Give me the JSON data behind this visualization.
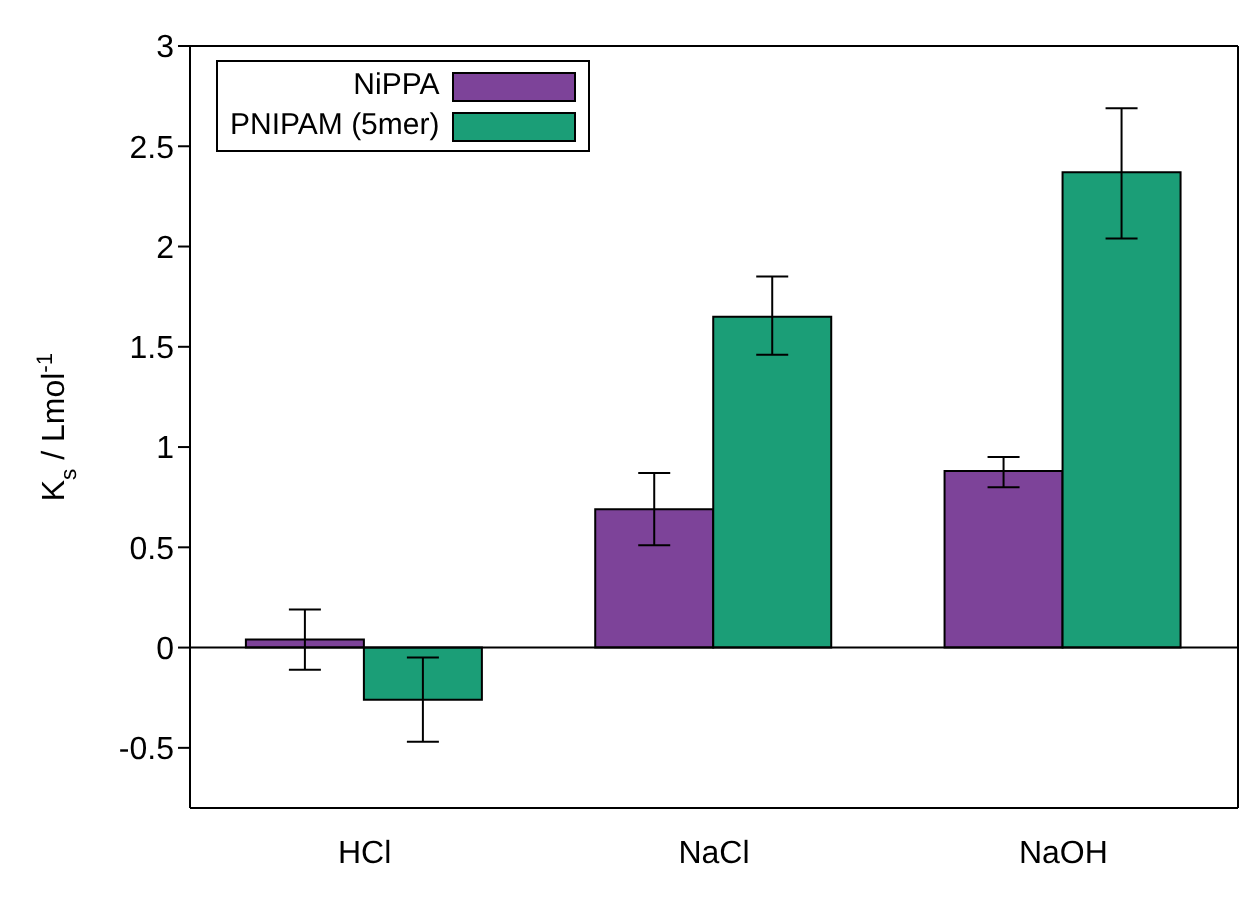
{
  "chart_data": {
    "type": "bar",
    "ylabel": "K$_{s}$ / Lmol$^{-1}$",
    "categories": [
      "HCl",
      "NaCl",
      "NaOH"
    ],
    "series": [
      {
        "name": "NiPPA",
        "color": "#7d4399",
        "values": [
          0.04,
          0.69,
          0.88
        ],
        "errors": [
          [
            -0.11,
            0.19
          ],
          [
            0.51,
            0.87
          ],
          [
            0.8,
            0.95
          ]
        ]
      },
      {
        "name": "PNIPAM (5mer)",
        "color": "#1b9e77",
        "values": [
          -0.26,
          1.65,
          2.37
        ],
        "errors": [
          [
            -0.47,
            -0.05
          ],
          [
            1.46,
            1.85
          ],
          [
            2.04,
            2.69
          ]
        ]
      }
    ],
    "ylim": [
      -0.8,
      3
    ],
    "yticks": [
      -0.5,
      0,
      0.5,
      1,
      1.5,
      2,
      2.5,
      3
    ],
    "ref_lines": [
      {
        "axis": "y",
        "value": 0,
        "color": "#000000"
      }
    ],
    "legend": "top left"
  }
}
